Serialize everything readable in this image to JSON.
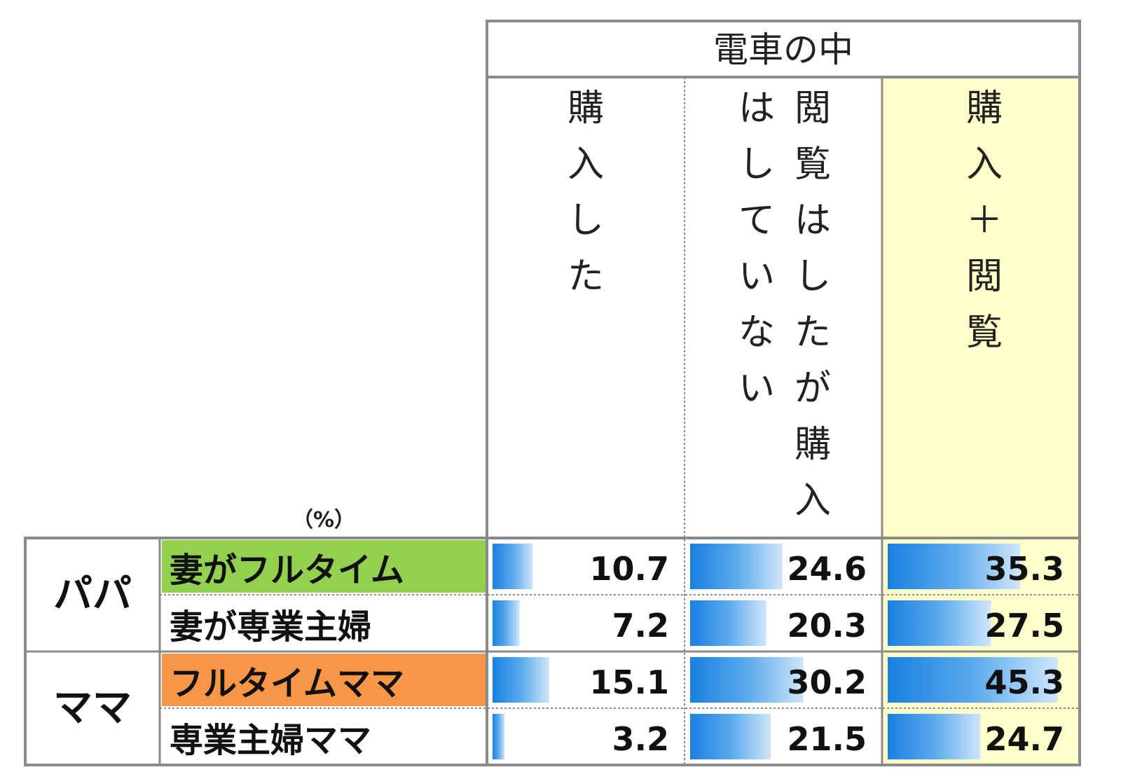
{
  "chart_data": {
    "type": "table",
    "unit": "（%）",
    "header_group": "電車の中",
    "columns": [
      "購入した",
      "閲覧はしたが購入はしていない",
      "購入＋閲覧"
    ],
    "groups": [
      {
        "label": "パパ",
        "rows": [
          {
            "label": "妻がフルタイム",
            "values": [
              10.7,
              24.6,
              35.3
            ],
            "highlight": "#92d050"
          },
          {
            "label": "妻が専業主婦",
            "values": [
              7.2,
              20.3,
              27.5
            ]
          }
        ]
      },
      {
        "label": "ママ",
        "rows": [
          {
            "label": "フルタイムママ",
            "values": [
              15.1,
              30.2,
              45.3
            ],
            "highlight": "#f79646"
          },
          {
            "label": "専業主婦ママ",
            "values": [
              3.2,
              21.5,
              24.7
            ]
          }
        ]
      }
    ],
    "bar_max": 50,
    "highlight_column_color": "#ffffcc",
    "bar_color": "#1f88e5"
  }
}
